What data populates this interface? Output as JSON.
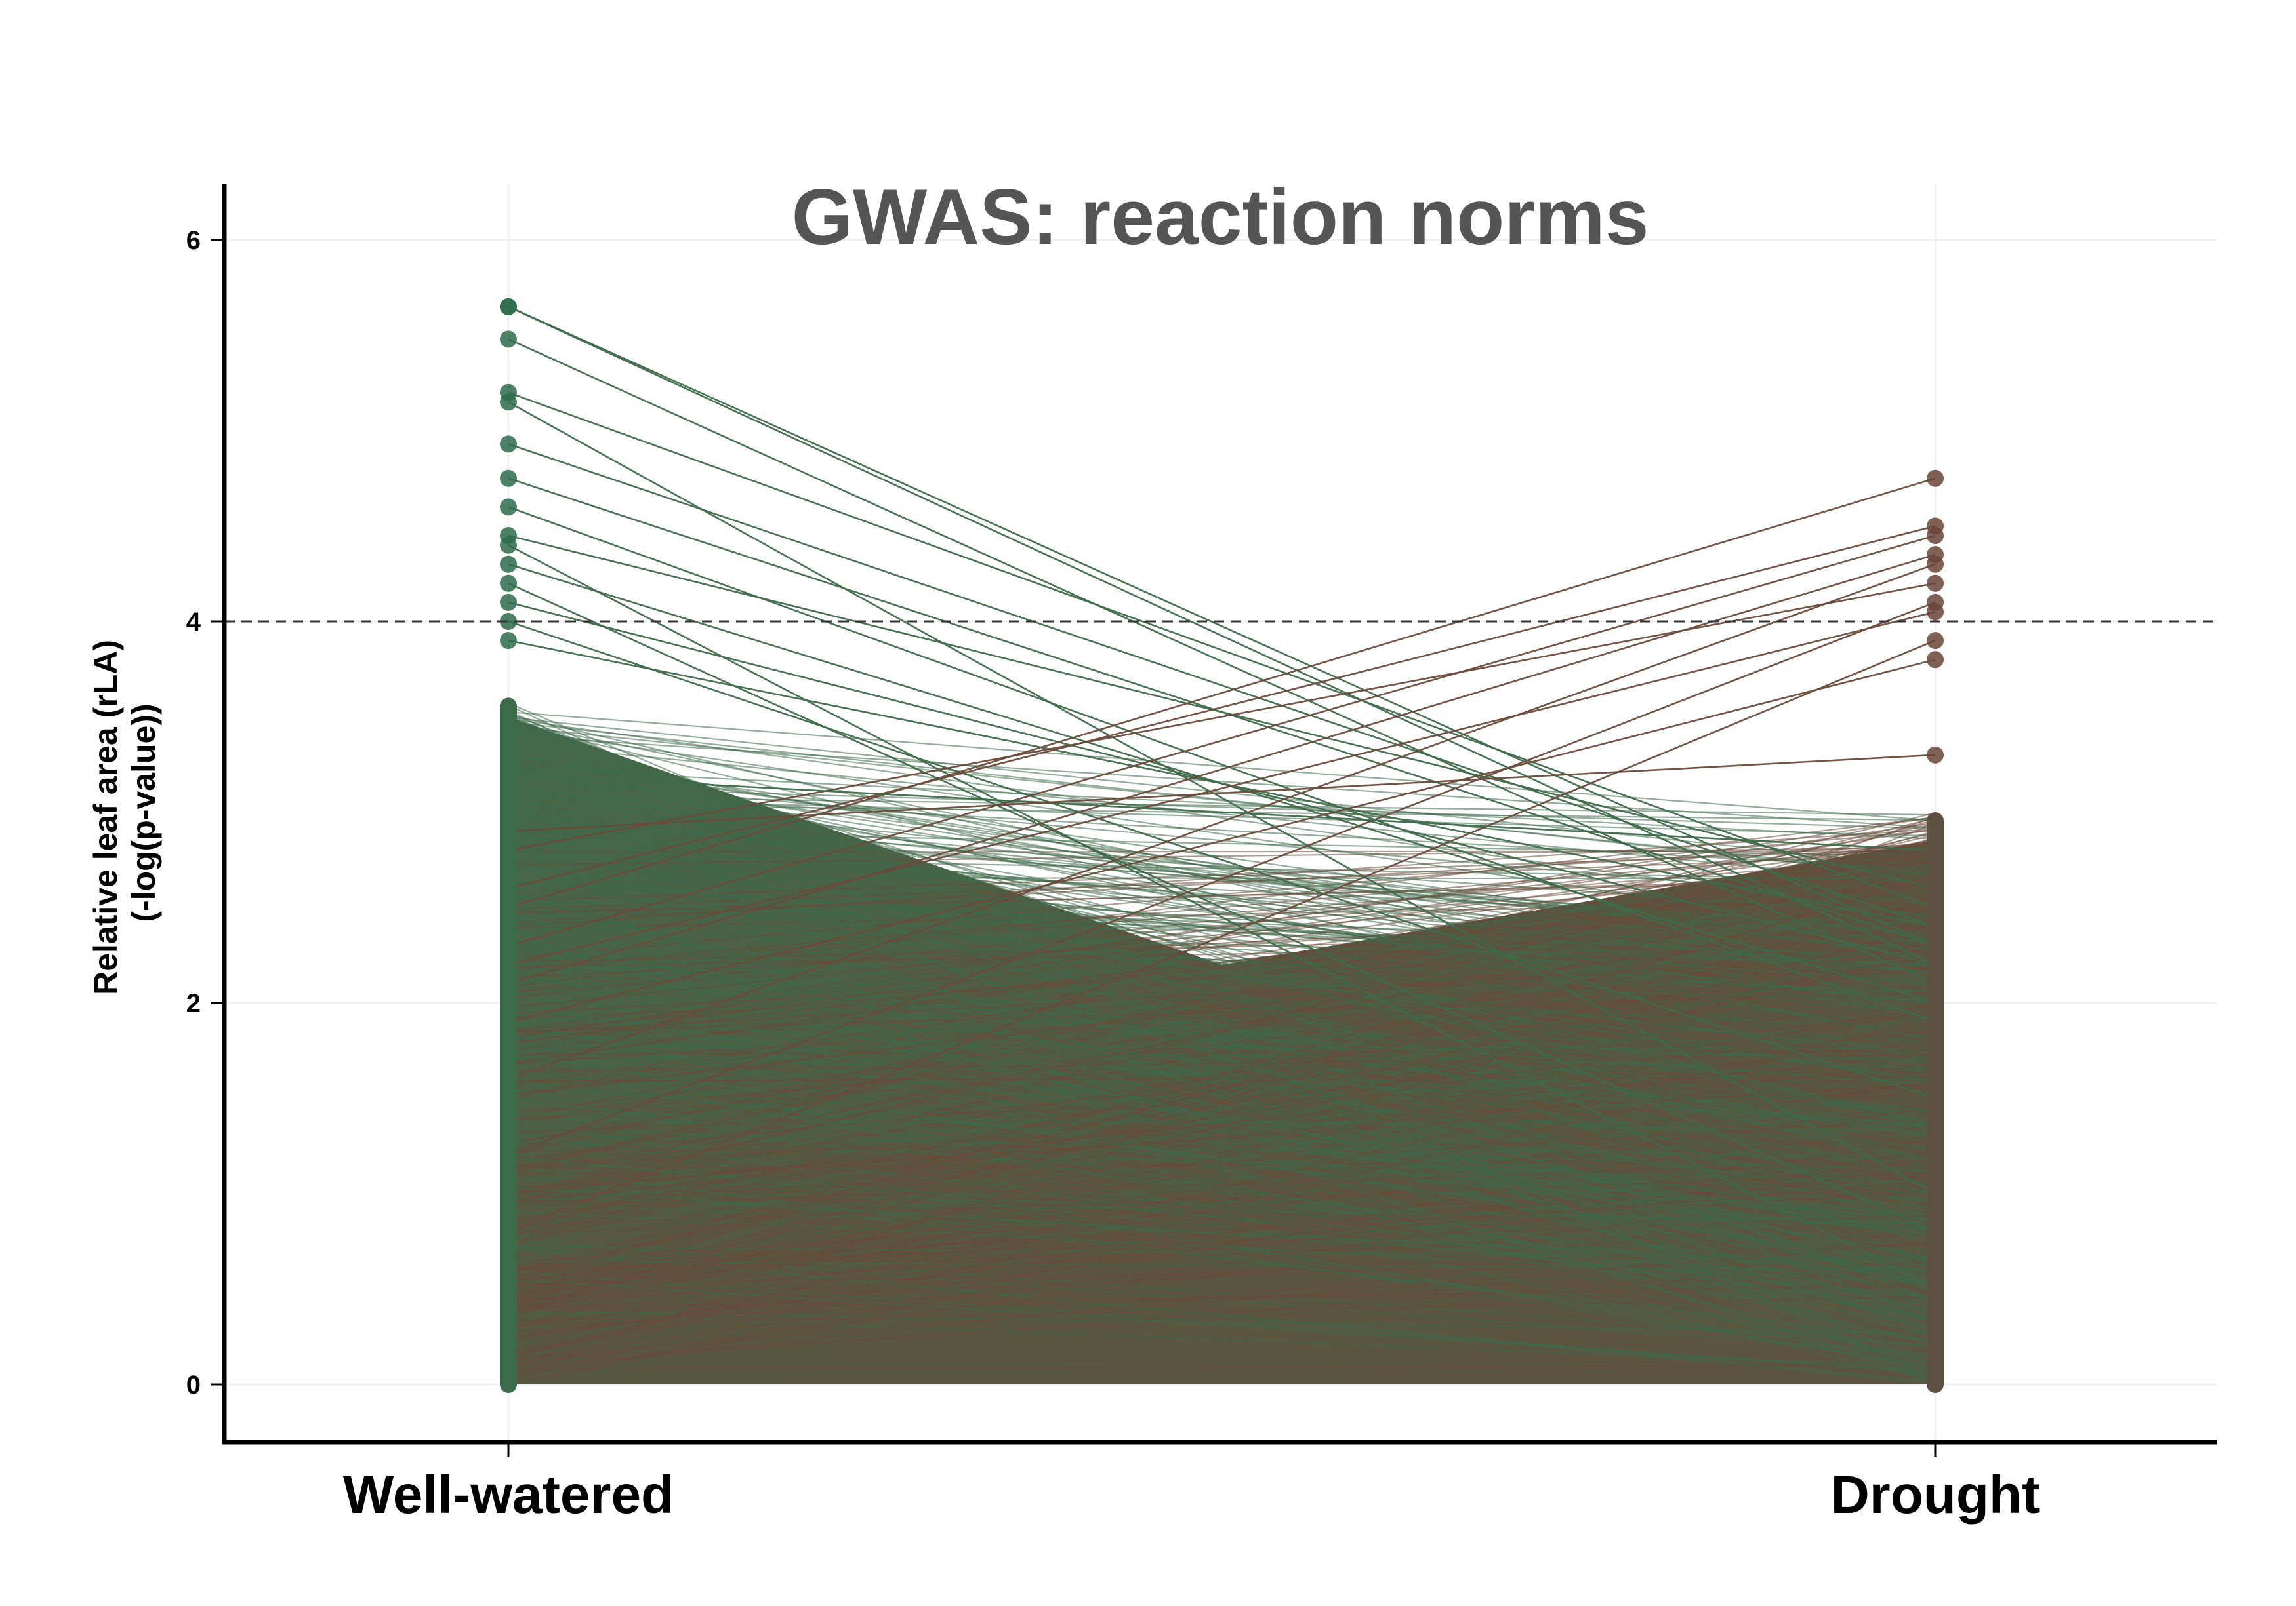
{
  "chart_data": {
    "type": "line",
    "title": "GWAS: reaction norms",
    "xlabel": "",
    "ylabel": [
      "Relative leaf area (rLA)",
      "(-log(p-value))"
    ],
    "categories": [
      "Well-watered",
      "Drought"
    ],
    "ylim": [
      -0.3,
      6.3
    ],
    "yticks": [
      0,
      2,
      4,
      6
    ],
    "threshold": 4,
    "grid": true,
    "colors": {
      "well_watered_high": "#2E6B4C",
      "drought_high": "#6B4538",
      "line_green": "#3E6A4A",
      "line_brown": "#6A4A3A",
      "mixed": "#5C5A45"
    },
    "highlighted_pairs": [
      {
        "ww": 5.65,
        "dr": 2.3
      },
      {
        "ww": 5.65,
        "dr": 2.2
      },
      {
        "ww": 5.48,
        "dr": 2.1
      },
      {
        "ww": 5.2,
        "dr": 2.5
      },
      {
        "ww": 5.15,
        "dr": 1.0
      },
      {
        "ww": 4.93,
        "dr": 2.4
      },
      {
        "ww": 4.75,
        "dr": 2.3
      },
      {
        "ww": 4.6,
        "dr": 1.9
      },
      {
        "ww": 4.45,
        "dr": 2.6
      },
      {
        "ww": 4.4,
        "dr": 0.5
      },
      {
        "ww": 4.3,
        "dr": 2.0
      },
      {
        "ww": 4.2,
        "dr": 0.8
      },
      {
        "ww": 4.1,
        "dr": 2.2
      },
      {
        "ww": 4.0,
        "dr": 1.5
      },
      {
        "ww": 3.9,
        "dr": 2.4
      },
      {
        "ww": 2.5,
        "dr": 4.75
      },
      {
        "ww": 2.6,
        "dr": 4.5
      },
      {
        "ww": 2.3,
        "dr": 4.45
      },
      {
        "ww": 2.1,
        "dr": 4.35
      },
      {
        "ww": 1.6,
        "dr": 4.3
      },
      {
        "ww": 2.8,
        "dr": 4.2
      },
      {
        "ww": 1.2,
        "dr": 4.1
      },
      {
        "ww": 2.2,
        "dr": 4.05
      },
      {
        "ww": 0.8,
        "dr": 3.9
      },
      {
        "ww": 1.9,
        "dr": 3.8
      },
      {
        "ww": 3.2,
        "dr": 2.8
      },
      {
        "ww": 2.9,
        "dr": 3.3
      }
    ]
  }
}
